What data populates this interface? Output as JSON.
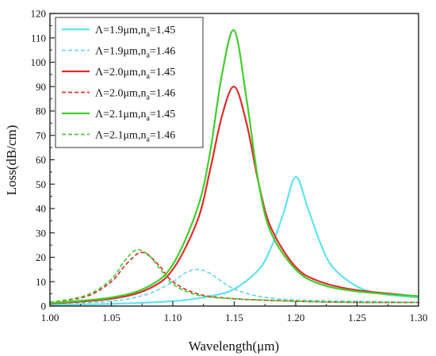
{
  "chart_data": {
    "type": "line",
    "xlabel": "Wavelength(μm)",
    "ylabel": "Loss(dB/cm)",
    "xlim": [
      1.0,
      1.3
    ],
    "ylim": [
      0,
      120
    ],
    "xticks": [
      "1.00",
      "1.05",
      "1.10",
      "1.15",
      "1.20",
      "1.25",
      "1.30"
    ],
    "yticks": [
      "0",
      "10",
      "20",
      "30",
      "40",
      "50",
      "60",
      "70",
      "80",
      "90",
      "100",
      "110",
      "120"
    ],
    "legend_position": "top-left",
    "grid": false,
    "series": [
      {
        "name": "Λ=1.9μm,n_a=1.45",
        "label_main": "Λ=1.9μm,n",
        "label_sub": "a",
        "label_tail": "=1.45",
        "color": "#5ee3ee",
        "dash": "solid",
        "x": [
          1.0,
          1.05,
          1.1,
          1.13,
          1.15,
          1.17,
          1.18,
          1.19,
          1.2,
          1.21,
          1.22,
          1.23,
          1.25,
          1.27,
          1.3
        ],
        "y": [
          0.5,
          0.9,
          2.0,
          4.0,
          7.0,
          15.0,
          24.0,
          38.0,
          53.0,
          40.0,
          26.0,
          16.0,
          8.0,
          5.0,
          3.5
        ]
      },
      {
        "name": "Λ=1.9μm,n_a=1.46",
        "label_main": "Λ=1.9μm,n",
        "label_sub": "a",
        "label_tail": "=1.46",
        "color": "#6ed8ea",
        "dash": "dash",
        "x": [
          1.0,
          1.05,
          1.08,
          1.1,
          1.11,
          1.12,
          1.13,
          1.14,
          1.15,
          1.17,
          1.2,
          1.25,
          1.3
        ],
        "y": [
          0.8,
          2.0,
          5.0,
          10.0,
          13.5,
          15.0,
          13.5,
          10.0,
          7.0,
          4.0,
          2.5,
          2.0,
          1.5
        ]
      },
      {
        "name": "Λ=2.0μm,n_a=1.45",
        "label_main": "Λ=2.0μm,n",
        "label_sub": "a",
        "label_tail": "=1.45",
        "color": "#e02b2b",
        "dash": "solid",
        "x": [
          1.0,
          1.05,
          1.08,
          1.1,
          1.12,
          1.13,
          1.14,
          1.15,
          1.16,
          1.17,
          1.18,
          1.2,
          1.22,
          1.25,
          1.3
        ],
        "y": [
          1.0,
          3.0,
          7.0,
          15.0,
          35.0,
          55.0,
          78.0,
          90.0,
          75.0,
          50.0,
          32.0,
          16.0,
          10.0,
          6.5,
          4.0
        ]
      },
      {
        "name": "Λ=2.0μm,n_a=1.46",
        "label_main": "Λ=2.0μm,n",
        "label_sub": "a",
        "label_tail": "=1.46",
        "color": "#d43a2a",
        "dash": "dash",
        "x": [
          1.0,
          1.03,
          1.05,
          1.06,
          1.07,
          1.075,
          1.08,
          1.09,
          1.1,
          1.12,
          1.15,
          1.2,
          1.25,
          1.3
        ],
        "y": [
          1.5,
          4.0,
          10.0,
          16.0,
          21.0,
          22.0,
          21.0,
          16.0,
          10.0,
          5.0,
          3.0,
          2.0,
          1.5,
          1.5
        ]
      },
      {
        "name": "Λ=2.1μm,n_a=1.45",
        "label_main": "Λ=2.1μm,n",
        "label_sub": "a",
        "label_tail": "=1.45",
        "color": "#3fcf2a",
        "dash": "solid",
        "x": [
          1.0,
          1.05,
          1.08,
          1.1,
          1.12,
          1.13,
          1.14,
          1.15,
          1.16,
          1.17,
          1.18,
          1.2,
          1.22,
          1.25,
          1.3
        ],
        "y": [
          1.2,
          3.5,
          8.0,
          17.0,
          40.0,
          62.0,
          95.0,
          113.0,
          85.0,
          50.0,
          30.0,
          15.0,
          9.0,
          6.0,
          4.0
        ]
      },
      {
        "name": "Λ=2.1μm,n_a=1.46",
        "label_main": "Λ=2.1μm,n",
        "label_sub": "a",
        "label_tail": "=1.46",
        "color": "#52c83c",
        "dash": "dash",
        "x": [
          1.0,
          1.03,
          1.05,
          1.06,
          1.07,
          1.08,
          1.09,
          1.1,
          1.12,
          1.15,
          1.2,
          1.25,
          1.3
        ],
        "y": [
          1.5,
          4.5,
          11.0,
          18.0,
          23.0,
          21.0,
          15.0,
          9.0,
          4.5,
          3.0,
          2.0,
          1.5,
          1.5
        ]
      }
    ]
  }
}
